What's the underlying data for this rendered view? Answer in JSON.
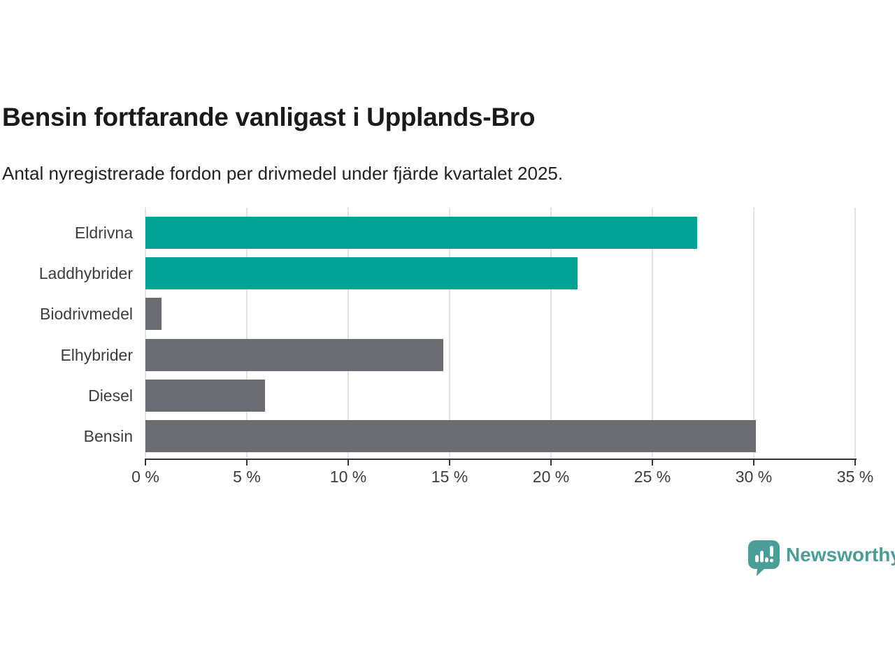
{
  "chart_data": {
    "type": "bar",
    "orientation": "horizontal",
    "title": "Bensin fortfarande vanligast i Upplands-Bro",
    "subtitle": "Antal nyregistrerade fordon per drivmedel under fjärde kvartalet 2025.",
    "categories": [
      "Eldrivna",
      "Laddhybrider",
      "Biodrivmedel",
      "Elhybrider",
      "Diesel",
      "Bensin"
    ],
    "values": [
      27.2,
      21.3,
      0.8,
      14.7,
      5.9,
      30.1
    ],
    "unit": "%",
    "bar_colors": [
      "#00a296",
      "#00a296",
      "#6b6b72",
      "#6b6b72",
      "#6b6b72",
      "#6b6b72"
    ],
    "xlim": [
      0,
      35
    ],
    "x_ticks": [
      0,
      5,
      10,
      15,
      20,
      25,
      30,
      35
    ],
    "x_tick_suffix": " %",
    "xlabel": "",
    "ylabel": "",
    "grid": true,
    "legend": false
  },
  "colors": {
    "highlight_bar": "#00a296",
    "default_bar": "#6b6b72",
    "gridline": "#e2e2e2",
    "axis": "#333333",
    "title_text": "#1a1a1a",
    "label_text": "#3d3d3d",
    "brand": "#4a9e98"
  },
  "branding": {
    "name": "Newsworthy",
    "logo_icon": "newsworthy-speech-bubble-chart-icon"
  }
}
